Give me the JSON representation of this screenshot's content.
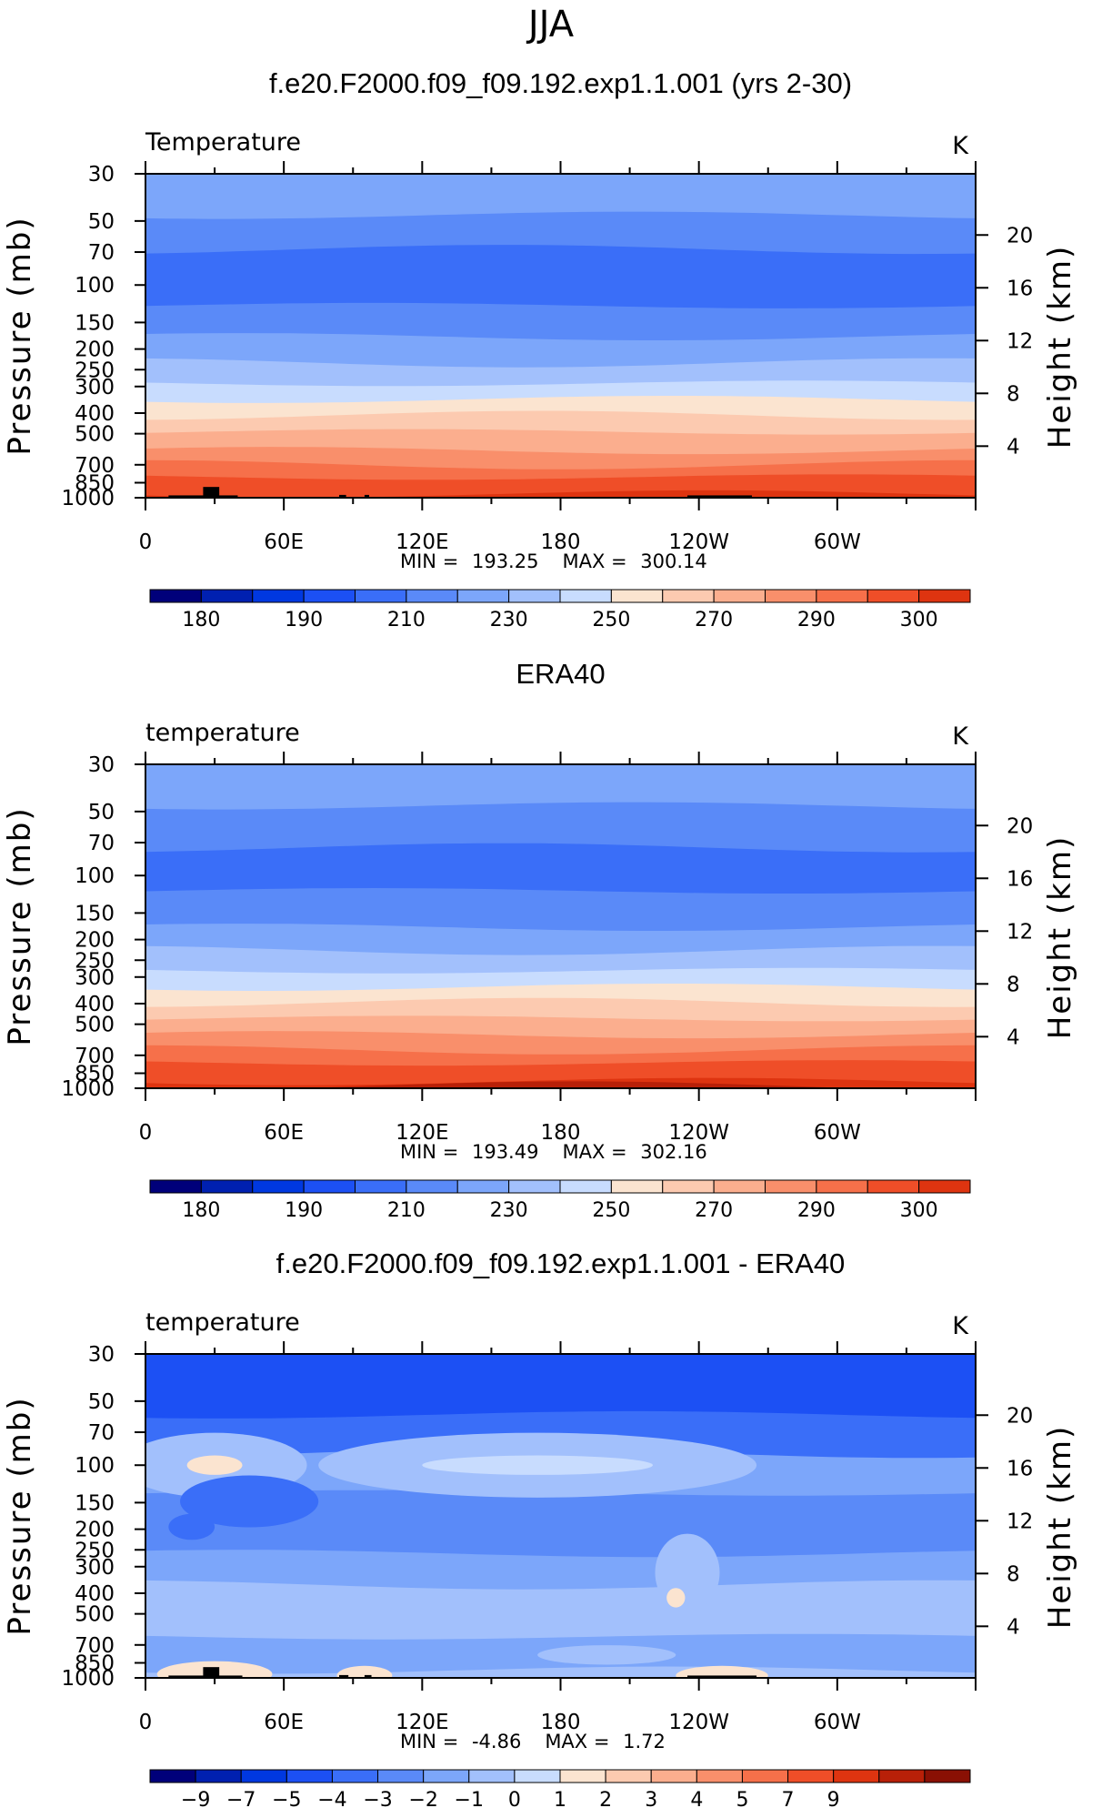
{
  "figure": {
    "season": "JJA"
  },
  "colors": {
    "absolute": [
      "#00007a",
      "#0020b0",
      "#0038e0",
      "#1c50f4",
      "#3a6ef8",
      "#5a8af8",
      "#7ca6fa",
      "#a2c0fc",
      "#c8dcfe",
      "#fbe4d0",
      "#fccab0",
      "#fbae8e",
      "#f98f6b",
      "#f6704a",
      "#ef4e28",
      "#de3410",
      "#b82008",
      "#8a1004"
    ],
    "difference": [
      "#00007a",
      "#0020b0",
      "#0038e0",
      "#1c50f4",
      "#3a6ef8",
      "#5a8af8",
      "#7ca6fa",
      "#a2c0fc",
      "#c8dcfe",
      "#fbe4d0",
      "#fccab0",
      "#fbae8e",
      "#f98f6b",
      "#f6704a",
      "#ef4e28",
      "#de3410",
      "#b82008",
      "#8a1004"
    ],
    "topography": "#000000"
  },
  "chart_data": [
    {
      "type": "heatmap",
      "title": "f.e20.F2000.f09_f09.192.exp1.1.001 (yrs 2-30)",
      "variable_label": "Temperature",
      "units": "K",
      "ylabel": "Pressure (mb)",
      "y2label": "Height (km)",
      "x_ticks": [
        "0",
        "60E",
        "120E",
        "180",
        "120W",
        "60W"
      ],
      "pressure_ticks": [
        "30",
        "50",
        "70",
        "100",
        "150",
        "200",
        "250",
        "300",
        "400",
        "500",
        "700",
        "850",
        "1000"
      ],
      "height_ticks": [
        "20",
        "16",
        "12",
        "8",
        "4"
      ],
      "xlim": [
        0,
        360
      ],
      "ylim_mb": [
        1000,
        30
      ],
      "stats": {
        "min_label": "MIN =",
        "min": "193.25",
        "max_label": "MAX =",
        "max": "300.14"
      },
      "colorbar": {
        "levels": [
          175,
          180,
          185,
          190,
          200,
          210,
          220,
          230,
          240,
          250,
          260,
          270,
          280,
          290,
          295,
          300,
          305
        ],
        "labels": [
          "180",
          "190",
          "210",
          "230",
          "250",
          "270",
          "290",
          "300"
        ]
      },
      "bands": [
        {
          "level_mb": 30,
          "class": 6
        },
        {
          "level_mb": 47,
          "class": 5
        },
        {
          "level_mb": 68,
          "class": 4
        },
        {
          "level_mb": 125,
          "class": 5
        },
        {
          "level_mb": 175,
          "class": 6
        },
        {
          "level_mb": 232,
          "class": 7
        },
        {
          "level_mb": 290,
          "class": 8
        },
        {
          "level_mb": 345,
          "class": 9
        },
        {
          "level_mb": 410,
          "class": 10
        },
        {
          "level_mb": 490,
          "class": 11
        },
        {
          "level_mb": 600,
          "class": 12
        },
        {
          "level_mb": 700,
          "class": 13
        },
        {
          "level_mb": 800,
          "class": 14
        },
        {
          "level_mb": 960,
          "class": 15
        }
      ],
      "topography": [
        {
          "lon": [
            10,
            30
          ],
          "top_mb": 975
        },
        {
          "lon": [
            25,
            32
          ],
          "top_mb": 890
        },
        {
          "lon": [
            30,
            40
          ],
          "top_mb": 975
        },
        {
          "lon": [
            84,
            87
          ],
          "top_mb": 970
        },
        {
          "lon": [
            95,
            97
          ],
          "top_mb": 970
        },
        {
          "lon": [
            235,
            263
          ],
          "top_mb": 975
        }
      ]
    },
    {
      "type": "heatmap",
      "title": "ERA40",
      "variable_label": "temperature",
      "units": "K",
      "ylabel": "Pressure (mb)",
      "y2label": "Height (km)",
      "x_ticks": [
        "0",
        "60E",
        "120E",
        "180",
        "120W",
        "60W"
      ],
      "pressure_ticks": [
        "30",
        "50",
        "70",
        "100",
        "150",
        "200",
        "250",
        "300",
        "400",
        "500",
        "700",
        "850",
        "1000"
      ],
      "height_ticks": [
        "20",
        "16",
        "12",
        "8",
        "4"
      ],
      "xlim": [
        0,
        360
      ],
      "ylim_mb": [
        1000,
        30
      ],
      "stats": {
        "min_label": "MIN =",
        "min": "193.49",
        "max_label": "MAX =",
        "max": "302.16"
      },
      "colorbar": {
        "levels": [
          175,
          180,
          185,
          190,
          200,
          210,
          220,
          230,
          240,
          250,
          260,
          270,
          280,
          290,
          295,
          300,
          305
        ],
        "labels": [
          "180",
          "190",
          "210",
          "230",
          "250",
          "270",
          "290",
          "300"
        ]
      },
      "bands": [
        {
          "level_mb": 30,
          "class": 6
        },
        {
          "level_mb": 47,
          "class": 5
        },
        {
          "level_mb": 74,
          "class": 4
        },
        {
          "level_mb": 118,
          "class": 5
        },
        {
          "level_mb": 175,
          "class": 6
        },
        {
          "level_mb": 225,
          "class": 7
        },
        {
          "level_mb": 280,
          "class": 8
        },
        {
          "level_mb": 335,
          "class": 9
        },
        {
          "level_mb": 395,
          "class": 10
        },
        {
          "level_mb": 470,
          "class": 11
        },
        {
          "level_mb": 560,
          "class": 12
        },
        {
          "level_mb": 660,
          "class": 13
        },
        {
          "level_mb": 760,
          "class": 14
        },
        {
          "level_mb": 930,
          "class": 15
        },
        {
          "level_mb": 975,
          "class": 16
        }
      ],
      "topography": []
    },
    {
      "type": "heatmap",
      "title": "f.e20.F2000.f09_f09.192.exp1.1.001 - ERA40",
      "variable_label": "temperature",
      "units": "K",
      "ylabel": "Pressure (mb)",
      "y2label": "Height (km)",
      "x_ticks": [
        "0",
        "60E",
        "120E",
        "180",
        "120W",
        "60W"
      ],
      "pressure_ticks": [
        "30",
        "50",
        "70",
        "100",
        "150",
        "200",
        "250",
        "300",
        "400",
        "500",
        "700",
        "850",
        "1000"
      ],
      "height_ticks": [
        "20",
        "16",
        "12",
        "8",
        "4"
      ],
      "xlim": [
        0,
        360
      ],
      "ylim_mb": [
        1000,
        30
      ],
      "stats": {
        "min_label": "MIN =",
        "min": "-4.86",
        "max_label": "MAX =",
        "max": "1.72"
      },
      "colorbar": {
        "levels": [
          -10,
          -9,
          -8,
          -7,
          -6,
          -5,
          -4,
          -3,
          -2,
          -1,
          0,
          1,
          2,
          3,
          4,
          5,
          7,
          9,
          11
        ],
        "labels": [
          "−9",
          "−7",
          "−5",
          "−4",
          "−3",
          "−2",
          "−1",
          "0",
          "1",
          "2",
          "3",
          "4",
          "5",
          "7",
          "9"
        ]
      },
      "bands": [
        {
          "level_mb": 30,
          "class": 3
        },
        {
          "level_mb": 58,
          "class": 4
        },
        {
          "level_mb": 88,
          "class": 6
        },
        {
          "level_mb": 135,
          "class": 5
        },
        {
          "level_mb": 260,
          "class": 6
        },
        {
          "level_mb": 365,
          "class": 7
        },
        {
          "level_mb": 640,
          "class": 6
        },
        {
          "level_mb": 920,
          "class": 7
        }
      ],
      "blobs": [
        {
          "lon": 30,
          "mb": 100,
          "dlon": 40,
          "dmb_rel": 0.1,
          "class": 7
        },
        {
          "lon": 30,
          "mb": 100,
          "dlon": 12,
          "dmb_rel": 0.03,
          "class": 9
        },
        {
          "lon": 170,
          "mb": 100,
          "dlon": 95,
          "dmb_rel": 0.1,
          "class": 7
        },
        {
          "lon": 170,
          "mb": 100,
          "dlon": 50,
          "dmb_rel": 0.03,
          "class": 8
        },
        {
          "lon": 45,
          "mb": 148,
          "dlon": 30,
          "dmb_rel": 0.08,
          "class": 4
        },
        {
          "lon": 20,
          "mb": 195,
          "dlon": 10,
          "dmb_rel": 0.04,
          "class": 4
        },
        {
          "lon": 235,
          "mb": 320,
          "dlon": 14,
          "dmb_rel": 0.12,
          "class": 7
        },
        {
          "lon": 230,
          "mb": 420,
          "dlon": 4,
          "dmb_rel": 0.03,
          "class": 9
        },
        {
          "lon": 200,
          "mb": 780,
          "dlon": 30,
          "dmb_rel": 0.03,
          "class": 7
        },
        {
          "lon": 30,
          "mb": 960,
          "dlon": 25,
          "dmb_rel": 0.04,
          "class": 9
        },
        {
          "lon": 95,
          "mb": 975,
          "dlon": 12,
          "dmb_rel": 0.03,
          "class": 9
        },
        {
          "lon": 250,
          "mb": 975,
          "dlon": 20,
          "dmb_rel": 0.03,
          "class": 9
        }
      ],
      "topography": [
        {
          "lon": [
            10,
            30
          ],
          "top_mb": 975
        },
        {
          "lon": [
            25,
            32
          ],
          "top_mb": 890
        },
        {
          "lon": [
            30,
            42
          ],
          "top_mb": 975
        },
        {
          "lon": [
            84,
            88
          ],
          "top_mb": 970
        },
        {
          "lon": [
            95,
            98
          ],
          "top_mb": 970
        },
        {
          "lon": [
            235,
            265
          ],
          "top_mb": 975
        }
      ]
    }
  ]
}
